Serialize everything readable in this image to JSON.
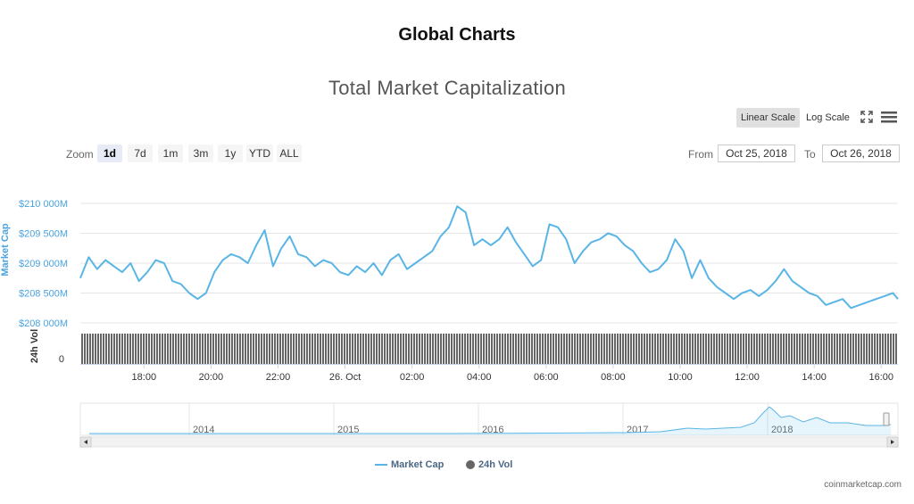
{
  "page": {
    "title": "Global Charts",
    "brand": "coinmarketcap.com"
  },
  "chart_title": "Total Market Capitalization",
  "scale": {
    "linear_label": "Linear Scale",
    "log_label": "Log Scale",
    "active": "linear"
  },
  "zoom": {
    "label": "Zoom",
    "buttons": [
      "1d",
      "7d",
      "1m",
      "3m",
      "1y",
      "YTD",
      "ALL"
    ],
    "active": "1d"
  },
  "range": {
    "from_label": "From",
    "from_value": "Oct 25, 2018",
    "to_label": "To",
    "to_value": "Oct 26, 2018"
  },
  "colors": {
    "line": "#59b5e6",
    "volume": "#666666",
    "axis_text": "#4aa3df",
    "grid": "#e6e6e6"
  },
  "chart_data": {
    "type": "line",
    "title": "Total Market Capitalization",
    "ylabel": "Market Cap",
    "ylabel2": "24h Vol",
    "ylim": [
      208000,
      210000
    ],
    "yticks": [
      "$208 000M",
      "$208 500M",
      "$209 000M",
      "$209 500M",
      "$210 000M"
    ],
    "ytick_values": [
      208000,
      208500,
      209000,
      209500,
      210000
    ],
    "vol_tick": "0",
    "x_ticks": [
      "18:00",
      "20:00",
      "22:00",
      "26. Oct",
      "02:00",
      "04:00",
      "06:00",
      "08:00",
      "10:00",
      "12:00",
      "14:00",
      "16:00"
    ],
    "x_tick_hours": [
      18,
      20,
      22,
      24,
      26,
      28,
      30,
      32,
      34,
      36,
      38,
      40
    ],
    "x_range_hours": [
      16.1,
      40.5
    ],
    "series": [
      {
        "name": "Market Cap",
        "x_hours": [
          16.1,
          16.35,
          16.6,
          16.85,
          17.1,
          17.35,
          17.6,
          17.85,
          18.1,
          18.35,
          18.6,
          18.85,
          19.1,
          19.35,
          19.6,
          19.85,
          20.1,
          20.35,
          20.6,
          20.85,
          21.1,
          21.35,
          21.6,
          21.85,
          22.1,
          22.35,
          22.6,
          22.85,
          23.1,
          23.35,
          23.6,
          23.85,
          24.1,
          24.35,
          24.6,
          24.85,
          25.1,
          25.35,
          25.6,
          25.85,
          26.1,
          26.35,
          26.6,
          26.85,
          27.1,
          27.35,
          27.6,
          27.85,
          28.1,
          28.35,
          28.6,
          28.85,
          29.1,
          29.35,
          29.6,
          29.85,
          30.1,
          30.35,
          30.6,
          30.85,
          31.1,
          31.35,
          31.6,
          31.85,
          32.1,
          32.35,
          32.6,
          32.85,
          33.1,
          33.35,
          33.6,
          33.85,
          34.1,
          34.35,
          34.6,
          34.85,
          35.1,
          35.35,
          35.6,
          35.85,
          36.1,
          36.35,
          36.6,
          36.85,
          37.1,
          37.35,
          37.6,
          37.85,
          38.1,
          38.35,
          38.6,
          38.85,
          39.1,
          39.35,
          39.6,
          39.85,
          40.1,
          40.35,
          40.5
        ],
        "values": [
          208750,
          209100,
          208900,
          209050,
          208950,
          208850,
          209000,
          208700,
          208850,
          209050,
          209000,
          208700,
          208650,
          208500,
          208400,
          208500,
          208850,
          209050,
          209150,
          209100,
          209000,
          209300,
          209550,
          208950,
          209250,
          209450,
          209150,
          209100,
          208950,
          209050,
          209000,
          208850,
          208800,
          208950,
          208850,
          209000,
          208800,
          209050,
          209150,
          208900,
          209000,
          209100,
          209200,
          209450,
          209600,
          209950,
          209850,
          209300,
          209400,
          209300,
          209400,
          209600,
          209350,
          209150,
          208950,
          209050,
          209650,
          209600,
          209400,
          209000,
          209200,
          209350,
          209400,
          209500,
          209450,
          209300,
          209200,
          209000,
          208850,
          208900,
          209050,
          209400,
          209200,
          208750,
          209050,
          208750,
          208600,
          208500,
          208400,
          208500,
          208550,
          208450,
          208550,
          208700,
          208900,
          208700,
          208600,
          208500,
          208450,
          208300,
          208350,
          208400,
          208250,
          208300,
          208350,
          208400,
          208450,
          208500,
          208400
        ]
      },
      {
        "name": "24h Vol",
        "type": "bar"
      }
    ],
    "navigator": {
      "years": [
        "2014",
        "2015",
        "2016",
        "2017",
        "2018"
      ]
    },
    "legend": [
      "Market Cap",
      "24h Vol"
    ]
  }
}
